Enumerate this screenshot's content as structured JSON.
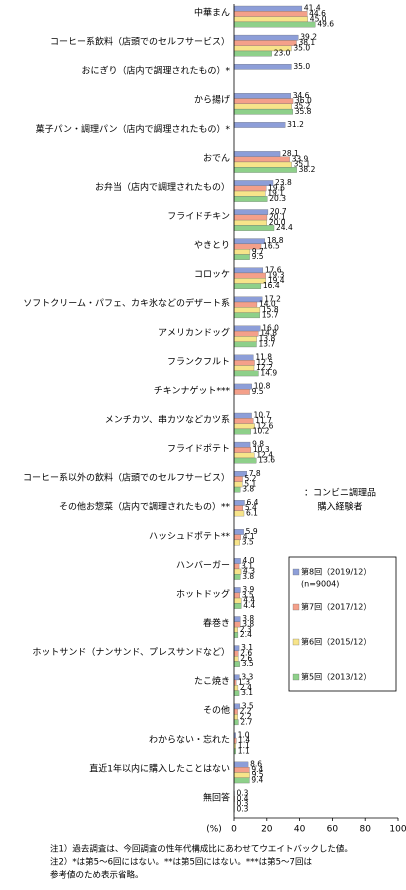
{
  "chart_data": {
    "type": "bar",
    "orientation": "horizontal",
    "categories": [
      "中華まん",
      "コーヒー系飲料（店頭でのセルフサービス）",
      "おにぎり（店内で調理されたもの）*",
      "から揚げ",
      "菓子パン・調理パン（店内で調理されたもの）*",
      "おでん",
      "お弁当（店内で調理されたもの）",
      "フライドチキン",
      "やきとり",
      "コロッケ",
      "ソフトクリーム・パフェ、カキ氷などのデザート系",
      "アメリカンドッグ",
      "フランクフルト",
      "チキンナゲット***",
      "メンチカツ、串カツなどカツ系",
      "フライドポテト",
      "コーヒー系以外の飲料（店頭でのセルフサービス）",
      "その他お惣菜（店内で調理されたもの）**",
      "ハッシュドポテト**",
      "ハンバーガー",
      "ホットドッグ",
      "春巻き",
      "ホットサンド（ナンサンド、プレスサンドなど）",
      "たこ焼き",
      "その他",
      "わからない・忘れた",
      "直近1年以内に購入したことはない",
      "無回答"
    ],
    "series": [
      {
        "name": "第8回（2019/12）",
        "color": "#8d9ed8",
        "values": [
          41.4,
          39.2,
          35.0,
          34.6,
          31.2,
          28.1,
          23.8,
          20.7,
          18.8,
          17.6,
          17.2,
          16.0,
          11.8,
          10.8,
          10.7,
          9.8,
          7.8,
          6.4,
          5.9,
          4.0,
          3.9,
          3.8,
          3.1,
          3.3,
          3.5,
          1.0,
          8.6,
          0.3
        ],
        "value_labels": [
          "41.4",
          "39.2",
          "35.0",
          "34.6",
          "31.2",
          "28.1",
          "23.8",
          "20.7",
          "18.8",
          "17.6",
          "17.2",
          "16.0",
          "11.8",
          "10.8",
          "10.7",
          "9.8",
          "7.8",
          "6.4",
          "5.9",
          "4.0",
          "3.9",
          "3.8",
          "3.1",
          "3.3",
          "3.5",
          "1.0",
          "8.6",
          "0.3"
        ]
      },
      {
        "name": "第7回（2017/12）",
        "color": "#f4a08a",
        "values": [
          44.6,
          38.1,
          null,
          36.0,
          null,
          33.9,
          19.6,
          20.1,
          16.5,
          19.3,
          14.0,
          14.8,
          12.5,
          9.5,
          11.7,
          10.3,
          5.2,
          5.4,
          4.1,
          3.1,
          3.5,
          3.8,
          2.6,
          1.3,
          2.2,
          1.4,
          9.4,
          0.4
        ],
        "value_labels": [
          "44.6",
          "38.1",
          null,
          "36.0",
          null,
          "33.9",
          "19.6",
          "20.1",
          "16.5",
          "19.3",
          "14.0",
          "14.8",
          "12.5",
          "9.5",
          "11.7",
          "10.3",
          "5.2",
          "5.4",
          "4.1",
          "3.1",
          "3.5",
          "3.8",
          "2.6",
          "1.3",
          "2.2",
          "1.4",
          "9.4",
          "0.4"
        ]
      },
      {
        "name": "第6回（2015/12）",
        "color": "#f7e48a",
        "values": [
          45.0,
          35.0,
          null,
          35.2,
          null,
          35.1,
          19.1,
          20.0,
          9.7,
          19.4,
          15.8,
          13.8,
          12.2,
          null,
          12.6,
          12.4,
          5.1,
          6.1,
          3.5,
          4.3,
          4.4,
          2.3,
          2.6,
          2.4,
          2.2,
          1.1,
          9.5,
          0.3
        ],
        "value_labels": [
          "45.0",
          "35.0",
          null,
          "35.2",
          null,
          "35.1",
          "19.1",
          "20.0",
          "9.7",
          "19.4",
          "15.8",
          "13.8",
          "12.2",
          null,
          "12.6",
          "12.4",
          "5.1",
          "6.1",
          "3.5",
          "4.3",
          "4.4",
          "2.3",
          "2.6",
          "2.4",
          "2.2",
          "1.1",
          "9.5",
          "0.3"
        ]
      },
      {
        "name": "第5回（2013/12）",
        "color": "#8ed08a",
        "values": [
          49.6,
          23.0,
          null,
          35.8,
          null,
          38.2,
          20.3,
          24.4,
          9.5,
          16.4,
          15.7,
          13.7,
          14.9,
          null,
          10.2,
          13.6,
          3.8,
          null,
          null,
          3.8,
          4.4,
          2.4,
          3.5,
          3.1,
          2.7,
          1.1,
          9.4,
          0.3
        ],
        "value_labels": [
          "49.6",
          "23.0",
          null,
          "35.8",
          null,
          "38.2",
          "20.3",
          "24.4",
          "9.5",
          "16.4",
          "15.7",
          "13.7",
          "14.9",
          null,
          "10.2",
          "13.6",
          "3.8",
          null,
          null,
          "3.8",
          "4.4",
          "2.4",
          "3.5",
          "3.1",
          "2.7",
          "1.1",
          "9.4",
          "0.3"
        ]
      }
    ],
    "n_label": "(n=9004)",
    "annotation": [
      "：コンビニ調理品",
      "購入経験者"
    ],
    "x_unit": "(%)",
    "xlim": [
      0,
      100
    ],
    "xticks": [
      0,
      20,
      40,
      60,
      80,
      100
    ],
    "notes": [
      "注1）過去調査は、今回調査の性年代構成比にあわせてウエイトバックした値。",
      "注2）*は第5～6回にはない。**は第5回にはない。***は第5～7回は",
      "参考値のため表示省略。"
    ]
  }
}
